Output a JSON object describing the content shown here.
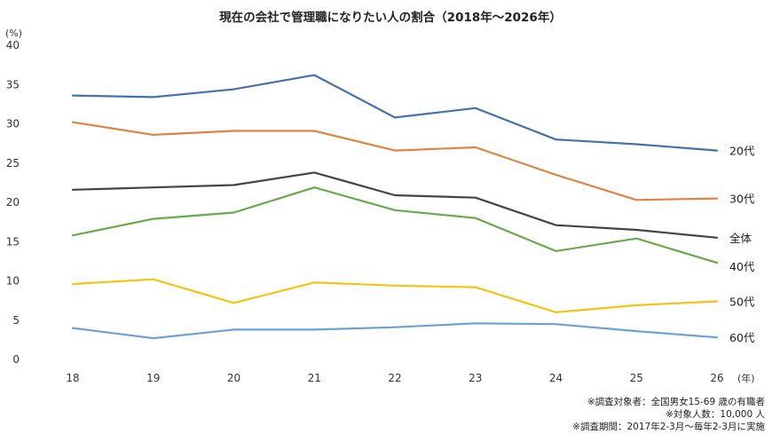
{
  "chart_data": {
    "type": "line",
    "title": "現在の会社で管理職になりたい人の割合（2018年～2026年）",
    "y_unit": "(%)",
    "x_unit": "(年)",
    "x": [
      "18",
      "19",
      "20",
      "21",
      "22",
      "23",
      "24",
      "25",
      "26"
    ],
    "ylim": [
      0,
      40
    ],
    "yticks": [
      0,
      5,
      10,
      15,
      20,
      25,
      30,
      35,
      40
    ],
    "grid": false,
    "legend": "series labels at right end of each line",
    "series": [
      {
        "name": "20代",
        "color": "#4672a8",
        "values": [
          33.6,
          33.4,
          34.4,
          36.2,
          30.8,
          32.0,
          28.0,
          27.4,
          26.6
        ]
      },
      {
        "name": "30代",
        "color": "#de8344",
        "values": [
          30.2,
          28.6,
          29.1,
          29.1,
          26.6,
          27.0,
          23.5,
          20.3,
          20.5
        ]
      },
      {
        "name": "全体",
        "color": "#444444",
        "values": [
          21.6,
          21.9,
          22.2,
          23.8,
          20.9,
          20.6,
          17.1,
          16.5,
          15.5
        ]
      },
      {
        "name": "40代",
        "color": "#6aa84f",
        "values": [
          15.8,
          17.9,
          18.7,
          21.9,
          19.0,
          18.0,
          13.8,
          15.4,
          12.3
        ]
      },
      {
        "name": "50代",
        "color": "#f2c318",
        "values": [
          9.6,
          10.2,
          7.2,
          9.8,
          9.4,
          9.2,
          6.0,
          6.9,
          7.4
        ]
      },
      {
        "name": "60代",
        "color": "#6ea1cf",
        "values": [
          4.0,
          2.7,
          3.8,
          3.8,
          4.1,
          4.6,
          4.5,
          3.6,
          2.8
        ]
      }
    ],
    "notes": [
      "※調査対象者：全国男女15-69 歳の有職者",
      "※対象人数：10,000 人",
      "※調査期間：2017年2-3月～毎年2-3月に実施"
    ]
  }
}
